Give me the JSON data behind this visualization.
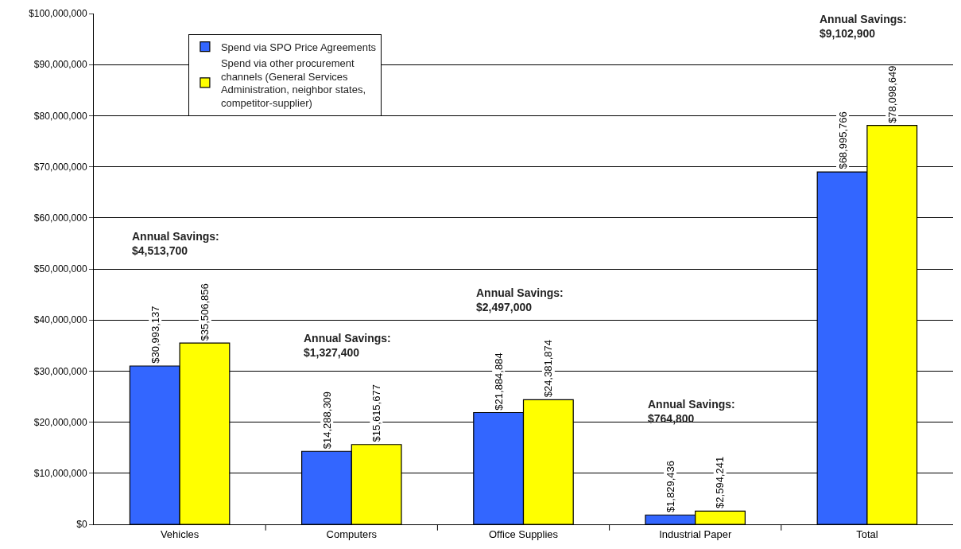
{
  "chart_data": {
    "type": "bar",
    "categories": [
      "Vehicles",
      "Computers",
      "Office Supplies",
      "Industrial Paper",
      "Total"
    ],
    "series": [
      {
        "name": "Spend via SPO Price Agreements",
        "color": "#3366ff",
        "values": [
          30993137,
          14288309,
          21884884,
          1829436,
          68995766
        ],
        "value_labels": [
          "$30,993,137",
          "$14,288,309",
          "$21,884,884",
          "$1,829,436",
          "$68,995,766"
        ]
      },
      {
        "name": "Spend via other procurement channels (General Services Administration, neighbor states, competitor-supplier)",
        "color": "#ffff00",
        "values": [
          35506856,
          15615677,
          24381874,
          2594241,
          78098649
        ],
        "value_labels": [
          "$35,506,856",
          "$15,615,677",
          "$24,381,874",
          "$2,594,241",
          "$78,098,649"
        ]
      }
    ],
    "ylim": [
      0,
      100000000
    ],
    "yticks": [
      {
        "value": 0,
        "label": "$0"
      },
      {
        "value": 10000000,
        "label": "$10,000,000"
      },
      {
        "value": 20000000,
        "label": "$20,000,000"
      },
      {
        "value": 30000000,
        "label": "$30,000,000"
      },
      {
        "value": 40000000,
        "label": "$40,000,000"
      },
      {
        "value": 50000000,
        "label": "$50,000,000"
      },
      {
        "value": 60000000,
        "label": "$60,000,000"
      },
      {
        "value": 70000000,
        "label": "$70,000,000"
      },
      {
        "value": 80000000,
        "label": "$80,000,000"
      },
      {
        "value": 90000000,
        "label": "$90,000,000"
      },
      {
        "value": 100000000,
        "label": "$100,000,000"
      }
    ],
    "annotations": [
      "Annual Savings:\n$4,513,700",
      "Annual Savings:\n$1,327,400",
      "Annual Savings:\n$2,497,000",
      "Annual Savings:\n$764,800",
      "Annual Savings:\n$9,102,900"
    ],
    "grid": "y",
    "legend": "top left"
  }
}
